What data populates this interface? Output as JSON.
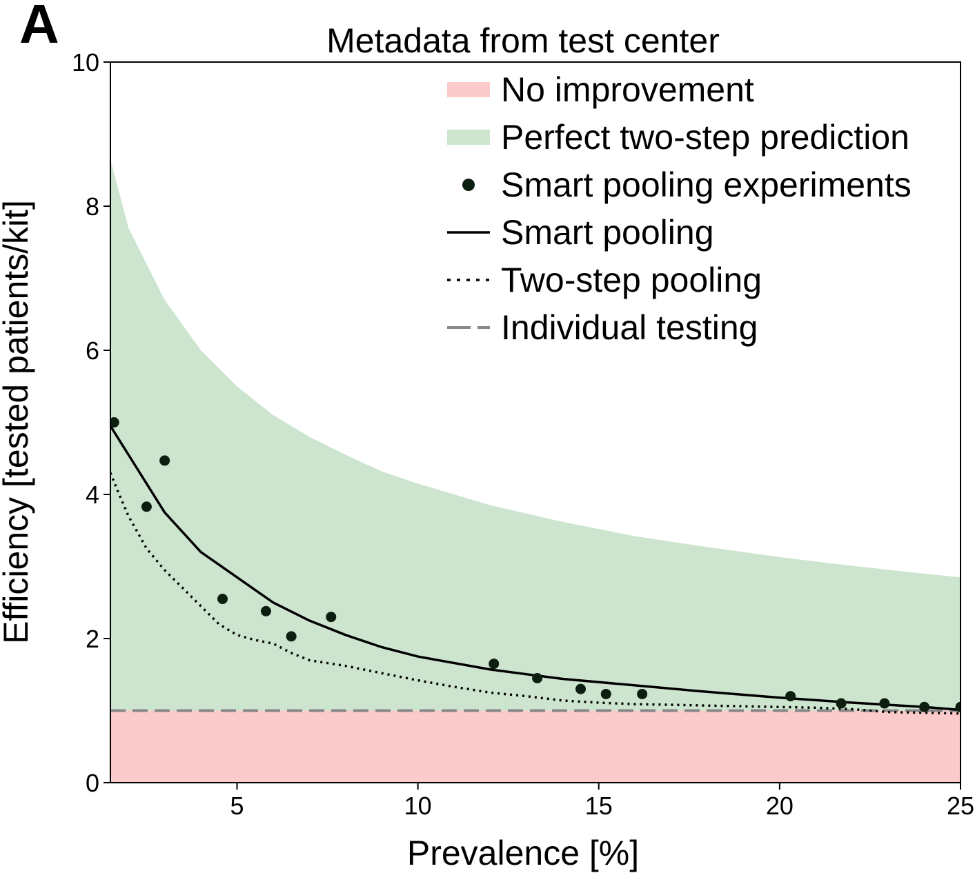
{
  "panel_label": "A",
  "chart_data": {
    "type": "line",
    "title": "Metadata from test center",
    "xlabel": "Prevalence [%]",
    "ylabel": "Efficiency [tested patients/kit]",
    "xlim": [
      1.5,
      25
    ],
    "ylim": [
      0,
      10
    ],
    "xticks": [
      5,
      10,
      15,
      20,
      25
    ],
    "yticks": [
      0,
      2,
      4,
      6,
      8,
      10
    ],
    "grid": false,
    "legend_position": "top-right",
    "legend": [
      {
        "key": "no_improvement",
        "label": "No improvement",
        "kind": "patch",
        "color": "#fbcbcb"
      },
      {
        "key": "perfect",
        "label": "Perfect two-step prediction",
        "kind": "patch",
        "color": "#cde5ce"
      },
      {
        "key": "experiments",
        "label": "Smart pooling experiments",
        "kind": "marker",
        "color": "#0c1e10"
      },
      {
        "key": "smart",
        "label": "Smart pooling",
        "kind": "solid",
        "color": "#000000"
      },
      {
        "key": "two_step",
        "label": "Two-step pooling",
        "kind": "dotted",
        "color": "#000000"
      },
      {
        "key": "individual",
        "label": "Individual testing",
        "kind": "dashed",
        "color": "#888888"
      }
    ],
    "series": [
      {
        "key": "perfect",
        "kind": "band",
        "color": "#cde5ce",
        "lower": 1,
        "x": [
          1.5,
          2,
          3,
          4,
          5,
          6,
          7,
          8,
          9,
          10,
          12,
          14,
          16,
          18,
          20,
          22,
          24,
          25
        ],
        "y": [
          8.65,
          7.7,
          6.7,
          6.0,
          5.5,
          5.1,
          4.8,
          4.55,
          4.32,
          4.15,
          3.85,
          3.62,
          3.42,
          3.27,
          3.13,
          3.01,
          2.9,
          2.85
        ]
      },
      {
        "key": "no_improvement",
        "kind": "band",
        "color": "#fbcbcb",
        "lower": 0,
        "x": [
          1.5,
          25
        ],
        "y": [
          1,
          1
        ]
      },
      {
        "key": "smart",
        "kind": "solid",
        "color": "#000000",
        "x": [
          1.5,
          2,
          3,
          4,
          5,
          6,
          7,
          8,
          9,
          10,
          12,
          14,
          16,
          18,
          20,
          22,
          24,
          25
        ],
        "y": [
          4.95,
          4.55,
          3.75,
          3.2,
          2.85,
          2.5,
          2.25,
          2.05,
          1.88,
          1.75,
          1.57,
          1.44,
          1.35,
          1.26,
          1.18,
          1.11,
          1.05,
          1.01
        ]
      },
      {
        "key": "two_step",
        "kind": "dotted",
        "color": "#000000",
        "x": [
          1.5,
          1.7,
          2,
          2.5,
          3,
          3.5,
          4,
          4.5,
          5,
          5.5,
          6,
          6.5,
          7,
          8,
          9,
          10,
          11,
          12,
          13,
          14,
          15,
          16,
          17,
          18,
          19,
          20,
          21,
          22,
          23,
          24,
          25
        ],
        "y": [
          4.3,
          4.05,
          3.7,
          3.25,
          2.95,
          2.7,
          2.45,
          2.2,
          2.05,
          1.98,
          1.93,
          1.8,
          1.7,
          1.62,
          1.52,
          1.42,
          1.33,
          1.25,
          1.2,
          1.14,
          1.11,
          1.09,
          1.08,
          1.07,
          1.06,
          1.05,
          1.04,
          1.02,
          0.98,
          0.97,
          0.96
        ]
      },
      {
        "key": "individual",
        "kind": "dashed",
        "color": "#888888",
        "x": [
          1.5,
          25
        ],
        "y": [
          1,
          1
        ]
      },
      {
        "key": "experiments",
        "kind": "scatter",
        "color": "#0c1e10",
        "x": [
          1.6,
          2.5,
          3.0,
          4.6,
          5.8,
          6.5,
          7.6,
          12.1,
          13.3,
          14.5,
          15.2,
          16.2,
          20.3,
          21.7,
          22.9,
          24.0,
          25.0
        ],
        "y": [
          5.0,
          3.83,
          4.47,
          2.55,
          2.38,
          2.03,
          2.3,
          1.65,
          1.45,
          1.3,
          1.23,
          1.23,
          1.2,
          1.1,
          1.1,
          1.05,
          1.05
        ]
      }
    ]
  }
}
